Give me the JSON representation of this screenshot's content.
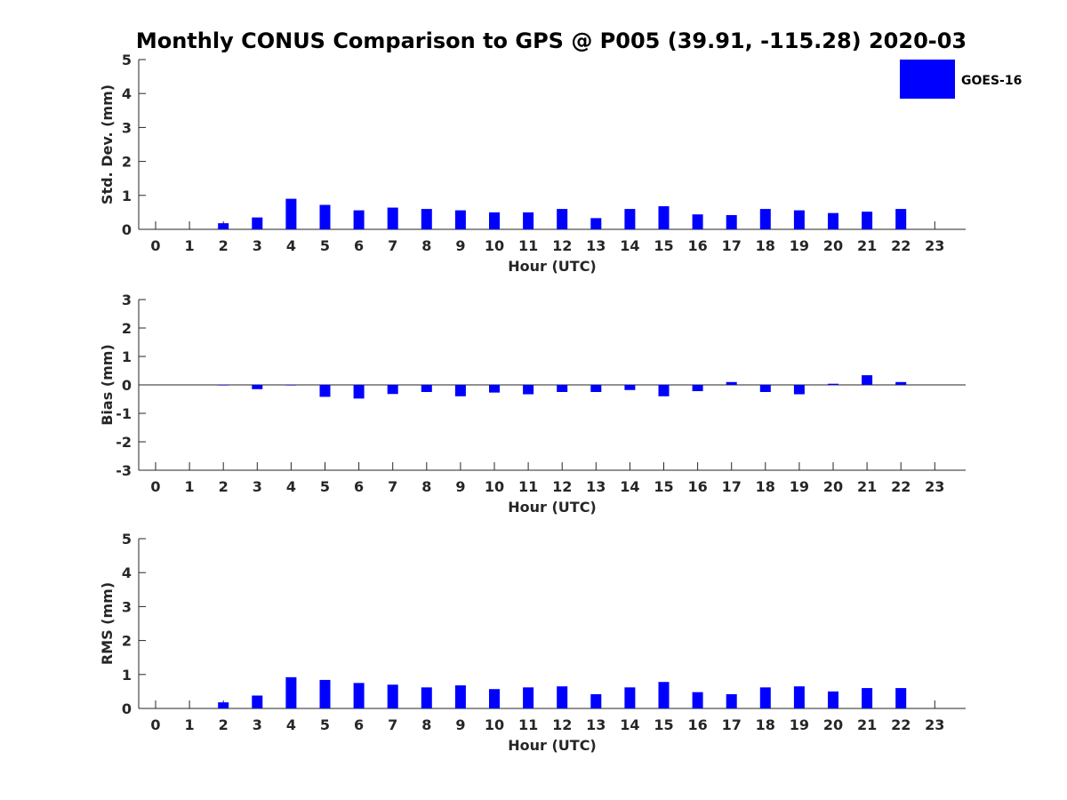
{
  "colors": {
    "bar": "#0000ff",
    "axis": "#262626",
    "background": "#ffffff"
  },
  "chart_data": {
    "type": "bar",
    "title": "Monthly CONUS Comparison to GPS @ P005 (39.91, -115.28) 2020-03",
    "legend": {
      "label": "GOES-16",
      "placement": "top-right"
    },
    "categories": [
      "0",
      "1",
      "2",
      "3",
      "4",
      "5",
      "6",
      "7",
      "8",
      "9",
      "10",
      "11",
      "12",
      "13",
      "14",
      "15",
      "16",
      "17",
      "18",
      "19",
      "20",
      "21",
      "22",
      "23"
    ],
    "panels": [
      {
        "name": "std-dev",
        "ylabel": "Std. Dev. (mm)",
        "xlabel": "Hour (UTC)",
        "ylim": [
          0,
          5
        ],
        "yticks": [
          "0",
          "1",
          "2",
          "3",
          "4",
          "5"
        ],
        "series": [
          {
            "name": "GOES-16",
            "values": [
              null,
              null,
              0.18,
              0.35,
              0.9,
              0.72,
              0.56,
              0.64,
              0.6,
              0.56,
              0.5,
              0.5,
              0.6,
              0.33,
              0.6,
              0.68,
              0.44,
              0.42,
              0.6,
              0.56,
              0.48,
              0.52,
              0.6,
              null
            ]
          }
        ]
      },
      {
        "name": "bias",
        "ylabel": "Bias (mm)",
        "xlabel": "Hour (UTC)",
        "ylim": [
          -3,
          3
        ],
        "yticks": [
          "-3",
          "-2",
          "-1",
          "0",
          "1",
          "2",
          "3"
        ],
        "series": [
          {
            "name": "GOES-16",
            "values": [
              null,
              null,
              -0.02,
              -0.15,
              -0.02,
              -0.42,
              -0.48,
              -0.32,
              -0.25,
              -0.4,
              -0.27,
              -0.33,
              -0.25,
              -0.25,
              -0.18,
              -0.4,
              -0.22,
              0.1,
              -0.25,
              -0.33,
              0.04,
              0.34,
              0.1,
              null
            ]
          }
        ]
      },
      {
        "name": "rms",
        "ylabel": "RMS (mm)",
        "xlabel": "Hour (UTC)",
        "ylim": [
          0,
          5
        ],
        "yticks": [
          "0",
          "1",
          "2",
          "3",
          "4",
          "5"
        ],
        "series": [
          {
            "name": "GOES-16",
            "values": [
              null,
              null,
              0.18,
              0.38,
              0.92,
              0.84,
              0.75,
              0.7,
              0.62,
              0.68,
              0.57,
              0.62,
              0.65,
              0.42,
              0.62,
              0.78,
              0.48,
              0.42,
              0.62,
              0.65,
              0.5,
              0.6,
              0.6,
              null
            ]
          }
        ]
      }
    ]
  }
}
